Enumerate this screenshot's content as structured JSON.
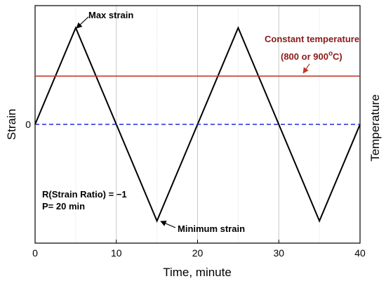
{
  "chart_data": {
    "type": "line",
    "xlabel": "Time, minute",
    "ylabel_left": "Strain",
    "ylabel_right": "Temperature",
    "xlim": [
      0,
      40
    ],
    "ylim": [
      -1.23,
      1.23
    ],
    "x_ticks": [
      0,
      10,
      20,
      30,
      40
    ],
    "x_tick_labels": [
      "0",
      "10",
      "20",
      "30",
      "40"
    ],
    "y_tick_labels": [
      {
        "value": 0,
        "label": "0"
      }
    ],
    "grid": "vertical dotted at each x tick and 5-minute interval",
    "series": [
      {
        "color": "#000000",
        "style": "solid",
        "x": [
          0,
          5,
          15,
          25,
          35,
          40
        ],
        "y": [
          0,
          1,
          -1,
          1,
          -1,
          0
        ]
      },
      {
        "color": "#c0392b",
        "style": "solid",
        "x": [
          0,
          40
        ],
        "y": [
          0.5,
          0.5
        ]
      },
      {
        "color": "#1f2bd6",
        "style": "dashed",
        "x": [
          0,
          40
        ],
        "y": [
          0,
          0
        ]
      }
    ],
    "annotations": {
      "max_strain": {
        "text": "Max strain",
        "x": 5,
        "y": 1
      },
      "min_strain": {
        "text": "Minimum strain",
        "x": 15,
        "y": -1
      },
      "constant_temp_line1": "Constant temperature",
      "constant_temp_line2_prefix": "(800 or 900",
      "constant_temp_sup": "o",
      "constant_temp_line2_suffix": "C)",
      "strain_ratio": "R(Strain Ratio) = −1",
      "period": "P= 20 min"
    }
  }
}
